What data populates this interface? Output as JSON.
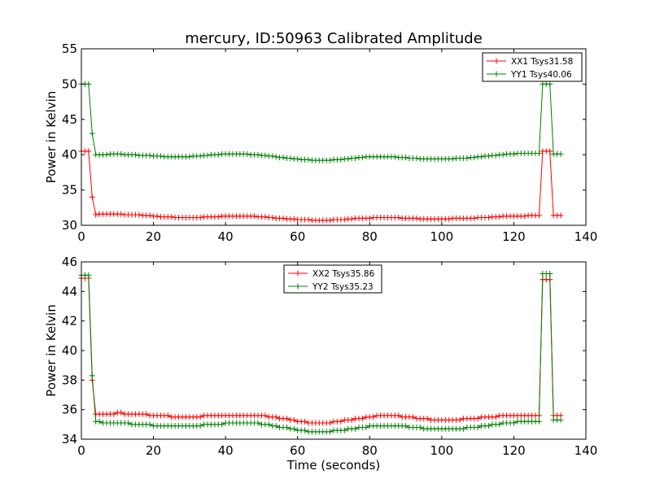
{
  "figure": {
    "title": "mercury, ID:50963 Calibrated Amplitude"
  },
  "chart_data": [
    {
      "type": "line",
      "title": "mercury, ID:50963 Calibrated Amplitude",
      "xlabel": "",
      "ylabel": "Power in Kelvin",
      "xlim": [
        0,
        140
      ],
      "ylim": [
        30,
        55
      ],
      "xticks": [
        0,
        20,
        40,
        60,
        80,
        100,
        120,
        140
      ],
      "yticks": [
        30,
        35,
        40,
        45,
        50,
        55
      ],
      "grid": false,
      "legend_position": "top-right",
      "marker": "+",
      "x": [
        0,
        1,
        2,
        3,
        4,
        5,
        6,
        7,
        8,
        9,
        10,
        11,
        12,
        13,
        14,
        15,
        16,
        17,
        18,
        19,
        20,
        21,
        22,
        23,
        24,
        25,
        26,
        27,
        28,
        29,
        30,
        31,
        32,
        33,
        34,
        35,
        36,
        37,
        38,
        39,
        40,
        41,
        42,
        43,
        44,
        45,
        46,
        47,
        48,
        49,
        50,
        51,
        52,
        53,
        54,
        55,
        56,
        57,
        58,
        59,
        60,
        61,
        62,
        63,
        64,
        65,
        66,
        67,
        68,
        69,
        70,
        71,
        72,
        73,
        74,
        75,
        76,
        77,
        78,
        79,
        80,
        81,
        82,
        83,
        84,
        85,
        86,
        87,
        88,
        89,
        90,
        91,
        92,
        93,
        94,
        95,
        96,
        97,
        98,
        99,
        100,
        101,
        102,
        103,
        104,
        105,
        106,
        107,
        108,
        109,
        110,
        111,
        112,
        113,
        114,
        115,
        116,
        117,
        118,
        119,
        120,
        121,
        122,
        123,
        124,
        125,
        126,
        127,
        128,
        129,
        130,
        131,
        132,
        133
      ],
      "series": [
        {
          "name": "XX1 Tsys31.58",
          "color": "#ff0000",
          "values": [
            40.5,
            40.5,
            40.5,
            34.0,
            31.5,
            31.6,
            31.6,
            31.6,
            31.6,
            31.6,
            31.6,
            31.6,
            31.5,
            31.5,
            31.5,
            31.5,
            31.5,
            31.4,
            31.4,
            31.4,
            31.3,
            31.3,
            31.2,
            31.2,
            31.2,
            31.2,
            31.1,
            31.1,
            31.1,
            31.1,
            31.1,
            31.1,
            31.1,
            31.1,
            31.2,
            31.2,
            31.2,
            31.2,
            31.2,
            31.3,
            31.3,
            31.3,
            31.3,
            31.3,
            31.3,
            31.3,
            31.3,
            31.3,
            31.3,
            31.2,
            31.2,
            31.2,
            31.1,
            31.1,
            31.0,
            31.0,
            31.0,
            30.9,
            30.9,
            30.9,
            30.8,
            30.8,
            30.8,
            30.8,
            30.7,
            30.7,
            30.7,
            30.7,
            30.7,
            30.7,
            30.8,
            30.8,
            30.8,
            30.8,
            30.9,
            30.9,
            31.0,
            31.0,
            31.0,
            31.0,
            31.0,
            31.1,
            31.1,
            31.1,
            31.1,
            31.1,
            31.1,
            31.1,
            31.1,
            31.0,
            31.0,
            31.0,
            31.0,
            31.0,
            30.9,
            30.9,
            30.9,
            30.9,
            30.9,
            30.9,
            30.9,
            30.9,
            30.9,
            31.0,
            31.0,
            31.0,
            31.0,
            31.0,
            31.0,
            31.0,
            31.1,
            31.1,
            31.1,
            31.1,
            31.2,
            31.2,
            31.2,
            31.3,
            31.3,
            31.3,
            31.3,
            31.3,
            31.3,
            31.3,
            31.4,
            31.4,
            31.4,
            31.4,
            40.5,
            40.5,
            40.5,
            31.4,
            31.4,
            31.4
          ]
        },
        {
          "name": "YY1 Tsys40.06",
          "color": "#008000",
          "values": [
            50.0,
            50.0,
            50.0,
            43.0,
            40.0,
            40.0,
            40.0,
            40.0,
            40.1,
            40.1,
            40.1,
            40.1,
            40.0,
            40.0,
            40.0,
            40.0,
            39.9,
            39.9,
            39.9,
            39.9,
            39.8,
            39.8,
            39.8,
            39.7,
            39.7,
            39.7,
            39.7,
            39.7,
            39.7,
            39.7,
            39.7,
            39.8,
            39.8,
            39.8,
            39.9,
            39.9,
            40.0,
            40.0,
            40.0,
            40.1,
            40.1,
            40.1,
            40.1,
            40.1,
            40.1,
            40.1,
            40.1,
            40.0,
            40.0,
            40.0,
            39.9,
            39.9,
            39.8,
            39.8,
            39.7,
            39.6,
            39.6,
            39.5,
            39.5,
            39.4,
            39.4,
            39.3,
            39.3,
            39.3,
            39.2,
            39.2,
            39.2,
            39.2,
            39.2,
            39.2,
            39.3,
            39.3,
            39.3,
            39.4,
            39.4,
            39.5,
            39.5,
            39.6,
            39.6,
            39.7,
            39.7,
            39.7,
            39.7,
            39.7,
            39.7,
            39.7,
            39.7,
            39.7,
            39.6,
            39.6,
            39.6,
            39.5,
            39.5,
            39.5,
            39.4,
            39.4,
            39.4,
            39.4,
            39.4,
            39.4,
            39.4,
            39.4,
            39.4,
            39.4,
            39.5,
            39.5,
            39.5,
            39.5,
            39.6,
            39.6,
            39.7,
            39.7,
            39.8,
            39.8,
            39.9,
            39.9,
            40.0,
            40.0,
            40.1,
            40.1,
            40.1,
            40.2,
            40.2,
            40.2,
            40.2,
            40.2,
            40.2,
            40.2,
            50.0,
            50.0,
            50.0,
            40.1,
            40.1,
            40.1
          ]
        }
      ]
    },
    {
      "type": "line",
      "title": "",
      "xlabel": "Time (seconds)",
      "ylabel": "Power in Kelvin",
      "xlim": [
        0,
        140
      ],
      "ylim": [
        34,
        46
      ],
      "xticks": [
        0,
        20,
        40,
        60,
        80,
        100,
        120,
        140
      ],
      "yticks": [
        34,
        36,
        38,
        40,
        42,
        44,
        46
      ],
      "grid": false,
      "legend_position": "top-center",
      "marker": "+",
      "x": [
        0,
        1,
        2,
        3,
        4,
        5,
        6,
        7,
        8,
        9,
        10,
        11,
        12,
        13,
        14,
        15,
        16,
        17,
        18,
        19,
        20,
        21,
        22,
        23,
        24,
        25,
        26,
        27,
        28,
        29,
        30,
        31,
        32,
        33,
        34,
        35,
        36,
        37,
        38,
        39,
        40,
        41,
        42,
        43,
        44,
        45,
        46,
        47,
        48,
        49,
        50,
        51,
        52,
        53,
        54,
        55,
        56,
        57,
        58,
        59,
        60,
        61,
        62,
        63,
        64,
        65,
        66,
        67,
        68,
        69,
        70,
        71,
        72,
        73,
        74,
        75,
        76,
        77,
        78,
        79,
        80,
        81,
        82,
        83,
        84,
        85,
        86,
        87,
        88,
        89,
        90,
        91,
        92,
        93,
        94,
        95,
        96,
        97,
        98,
        99,
        100,
        101,
        102,
        103,
        104,
        105,
        106,
        107,
        108,
        109,
        110,
        111,
        112,
        113,
        114,
        115,
        116,
        117,
        118,
        119,
        120,
        121,
        122,
        123,
        124,
        125,
        126,
        127,
        128,
        129,
        130,
        131,
        132,
        133
      ],
      "series": [
        {
          "name": "XX2 Tsys35.86",
          "color": "#ff0000",
          "values": [
            44.9,
            44.9,
            44.9,
            38.0,
            35.7,
            35.7,
            35.7,
            35.7,
            35.7,
            35.7,
            35.8,
            35.8,
            35.7,
            35.7,
            35.7,
            35.7,
            35.7,
            35.7,
            35.7,
            35.6,
            35.6,
            35.6,
            35.6,
            35.6,
            35.6,
            35.5,
            35.5,
            35.5,
            35.5,
            35.5,
            35.5,
            35.5,
            35.5,
            35.5,
            35.6,
            35.6,
            35.6,
            35.6,
            35.6,
            35.6,
            35.6,
            35.6,
            35.6,
            35.6,
            35.6,
            35.6,
            35.6,
            35.6,
            35.6,
            35.6,
            35.6,
            35.6,
            35.5,
            35.5,
            35.5,
            35.4,
            35.4,
            35.4,
            35.3,
            35.3,
            35.2,
            35.2,
            35.2,
            35.1,
            35.1,
            35.1,
            35.1,
            35.1,
            35.1,
            35.1,
            35.2,
            35.2,
            35.2,
            35.3,
            35.3,
            35.3,
            35.4,
            35.4,
            35.4,
            35.5,
            35.5,
            35.5,
            35.6,
            35.6,
            35.6,
            35.6,
            35.6,
            35.6,
            35.6,
            35.5,
            35.5,
            35.5,
            35.5,
            35.4,
            35.4,
            35.4,
            35.4,
            35.3,
            35.3,
            35.3,
            35.3,
            35.3,
            35.3,
            35.3,
            35.3,
            35.3,
            35.4,
            35.4,
            35.4,
            35.4,
            35.4,
            35.5,
            35.5,
            35.5,
            35.5,
            35.5,
            35.6,
            35.6,
            35.6,
            35.6,
            35.6,
            35.6,
            35.6,
            35.6,
            35.6,
            35.6,
            35.6,
            35.6,
            44.8,
            44.8,
            44.8,
            35.6,
            35.6,
            35.6
          ]
        },
        {
          "name": "YY2 Tsys35.23",
          "color": "#008000",
          "values": [
            45.1,
            45.1,
            45.1,
            38.3,
            35.2,
            35.2,
            35.1,
            35.1,
            35.1,
            35.1,
            35.1,
            35.1,
            35.1,
            35.1,
            35.0,
            35.0,
            35.0,
            35.0,
            35.0,
            35.0,
            34.9,
            34.9,
            34.9,
            34.9,
            34.9,
            34.9,
            34.9,
            34.9,
            34.9,
            34.9,
            34.9,
            34.9,
            34.9,
            34.9,
            35.0,
            35.0,
            35.0,
            35.0,
            35.0,
            35.0,
            35.1,
            35.1,
            35.1,
            35.1,
            35.1,
            35.1,
            35.1,
            35.1,
            35.1,
            35.1,
            35.0,
            35.0,
            35.0,
            34.9,
            34.9,
            34.8,
            34.8,
            34.8,
            34.7,
            34.7,
            34.6,
            34.6,
            34.6,
            34.5,
            34.5,
            34.5,
            34.5,
            34.5,
            34.5,
            34.5,
            34.6,
            34.6,
            34.6,
            34.6,
            34.7,
            34.7,
            34.7,
            34.8,
            34.8,
            34.8,
            34.9,
            34.9,
            34.9,
            34.9,
            34.9,
            34.9,
            34.9,
            34.9,
            34.9,
            34.9,
            34.9,
            34.8,
            34.8,
            34.8,
            34.8,
            34.7,
            34.7,
            34.7,
            34.7,
            34.7,
            34.7,
            34.7,
            34.7,
            34.7,
            34.7,
            34.7,
            34.7,
            34.8,
            34.8,
            34.8,
            34.8,
            34.9,
            34.9,
            34.9,
            35.0,
            35.0,
            35.0,
            35.1,
            35.1,
            35.1,
            35.1,
            35.2,
            35.2,
            35.2,
            35.2,
            35.2,
            35.2,
            35.2,
            45.2,
            45.2,
            45.2,
            35.3,
            35.3,
            35.3
          ]
        }
      ]
    }
  ]
}
